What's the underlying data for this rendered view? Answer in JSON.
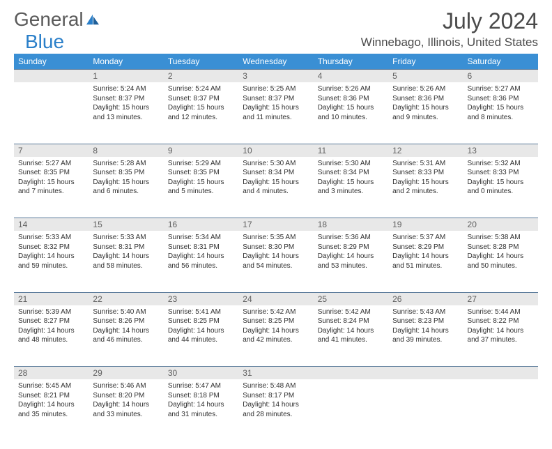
{
  "brand": {
    "general": "General",
    "blue": "Blue"
  },
  "title": "July 2024",
  "location": "Winnebago, Illinois, United States",
  "colors": {
    "header_bg": "#3a8fd4",
    "header_text": "#ffffff",
    "daynum_bg": "#e8e8e8",
    "daynum_text": "#606060",
    "border": "#5a7a9a",
    "body_text": "#303030",
    "title_text": "#4a4a4a",
    "logo_blue": "#2a7fc9"
  },
  "typography": {
    "title_fontsize": 32,
    "location_fontsize": 17,
    "header_fontsize": 12,
    "cell_fontsize": 10,
    "daynum_fontsize": 12
  },
  "layout": {
    "columns": 7,
    "rows": 5
  },
  "weekdays": [
    "Sunday",
    "Monday",
    "Tuesday",
    "Wednesday",
    "Thursday",
    "Friday",
    "Saturday"
  ],
  "weeks": [
    [
      null,
      {
        "n": 1,
        "sr": "5:24 AM",
        "ss": "8:37 PM",
        "dl": "15 hours and 13 minutes."
      },
      {
        "n": 2,
        "sr": "5:24 AM",
        "ss": "8:37 PM",
        "dl": "15 hours and 12 minutes."
      },
      {
        "n": 3,
        "sr": "5:25 AM",
        "ss": "8:37 PM",
        "dl": "15 hours and 11 minutes."
      },
      {
        "n": 4,
        "sr": "5:26 AM",
        "ss": "8:36 PM",
        "dl": "15 hours and 10 minutes."
      },
      {
        "n": 5,
        "sr": "5:26 AM",
        "ss": "8:36 PM",
        "dl": "15 hours and 9 minutes."
      },
      {
        "n": 6,
        "sr": "5:27 AM",
        "ss": "8:36 PM",
        "dl": "15 hours and 8 minutes."
      }
    ],
    [
      {
        "n": 7,
        "sr": "5:27 AM",
        "ss": "8:35 PM",
        "dl": "15 hours and 7 minutes."
      },
      {
        "n": 8,
        "sr": "5:28 AM",
        "ss": "8:35 PM",
        "dl": "15 hours and 6 minutes."
      },
      {
        "n": 9,
        "sr": "5:29 AM",
        "ss": "8:35 PM",
        "dl": "15 hours and 5 minutes."
      },
      {
        "n": 10,
        "sr": "5:30 AM",
        "ss": "8:34 PM",
        "dl": "15 hours and 4 minutes."
      },
      {
        "n": 11,
        "sr": "5:30 AM",
        "ss": "8:34 PM",
        "dl": "15 hours and 3 minutes."
      },
      {
        "n": 12,
        "sr": "5:31 AM",
        "ss": "8:33 PM",
        "dl": "15 hours and 2 minutes."
      },
      {
        "n": 13,
        "sr": "5:32 AM",
        "ss": "8:33 PM",
        "dl": "15 hours and 0 minutes."
      }
    ],
    [
      {
        "n": 14,
        "sr": "5:33 AM",
        "ss": "8:32 PM",
        "dl": "14 hours and 59 minutes."
      },
      {
        "n": 15,
        "sr": "5:33 AM",
        "ss": "8:31 PM",
        "dl": "14 hours and 58 minutes."
      },
      {
        "n": 16,
        "sr": "5:34 AM",
        "ss": "8:31 PM",
        "dl": "14 hours and 56 minutes."
      },
      {
        "n": 17,
        "sr": "5:35 AM",
        "ss": "8:30 PM",
        "dl": "14 hours and 54 minutes."
      },
      {
        "n": 18,
        "sr": "5:36 AM",
        "ss": "8:29 PM",
        "dl": "14 hours and 53 minutes."
      },
      {
        "n": 19,
        "sr": "5:37 AM",
        "ss": "8:29 PM",
        "dl": "14 hours and 51 minutes."
      },
      {
        "n": 20,
        "sr": "5:38 AM",
        "ss": "8:28 PM",
        "dl": "14 hours and 50 minutes."
      }
    ],
    [
      {
        "n": 21,
        "sr": "5:39 AM",
        "ss": "8:27 PM",
        "dl": "14 hours and 48 minutes."
      },
      {
        "n": 22,
        "sr": "5:40 AM",
        "ss": "8:26 PM",
        "dl": "14 hours and 46 minutes."
      },
      {
        "n": 23,
        "sr": "5:41 AM",
        "ss": "8:25 PM",
        "dl": "14 hours and 44 minutes."
      },
      {
        "n": 24,
        "sr": "5:42 AM",
        "ss": "8:25 PM",
        "dl": "14 hours and 42 minutes."
      },
      {
        "n": 25,
        "sr": "5:42 AM",
        "ss": "8:24 PM",
        "dl": "14 hours and 41 minutes."
      },
      {
        "n": 26,
        "sr": "5:43 AM",
        "ss": "8:23 PM",
        "dl": "14 hours and 39 minutes."
      },
      {
        "n": 27,
        "sr": "5:44 AM",
        "ss": "8:22 PM",
        "dl": "14 hours and 37 minutes."
      }
    ],
    [
      {
        "n": 28,
        "sr": "5:45 AM",
        "ss": "8:21 PM",
        "dl": "14 hours and 35 minutes."
      },
      {
        "n": 29,
        "sr": "5:46 AM",
        "ss": "8:20 PM",
        "dl": "14 hours and 33 minutes."
      },
      {
        "n": 30,
        "sr": "5:47 AM",
        "ss": "8:18 PM",
        "dl": "14 hours and 31 minutes."
      },
      {
        "n": 31,
        "sr": "5:48 AM",
        "ss": "8:17 PM",
        "dl": "14 hours and 28 minutes."
      },
      null,
      null,
      null
    ]
  ],
  "labels": {
    "sunrise": "Sunrise:",
    "sunset": "Sunset:",
    "daylight": "Daylight:"
  }
}
